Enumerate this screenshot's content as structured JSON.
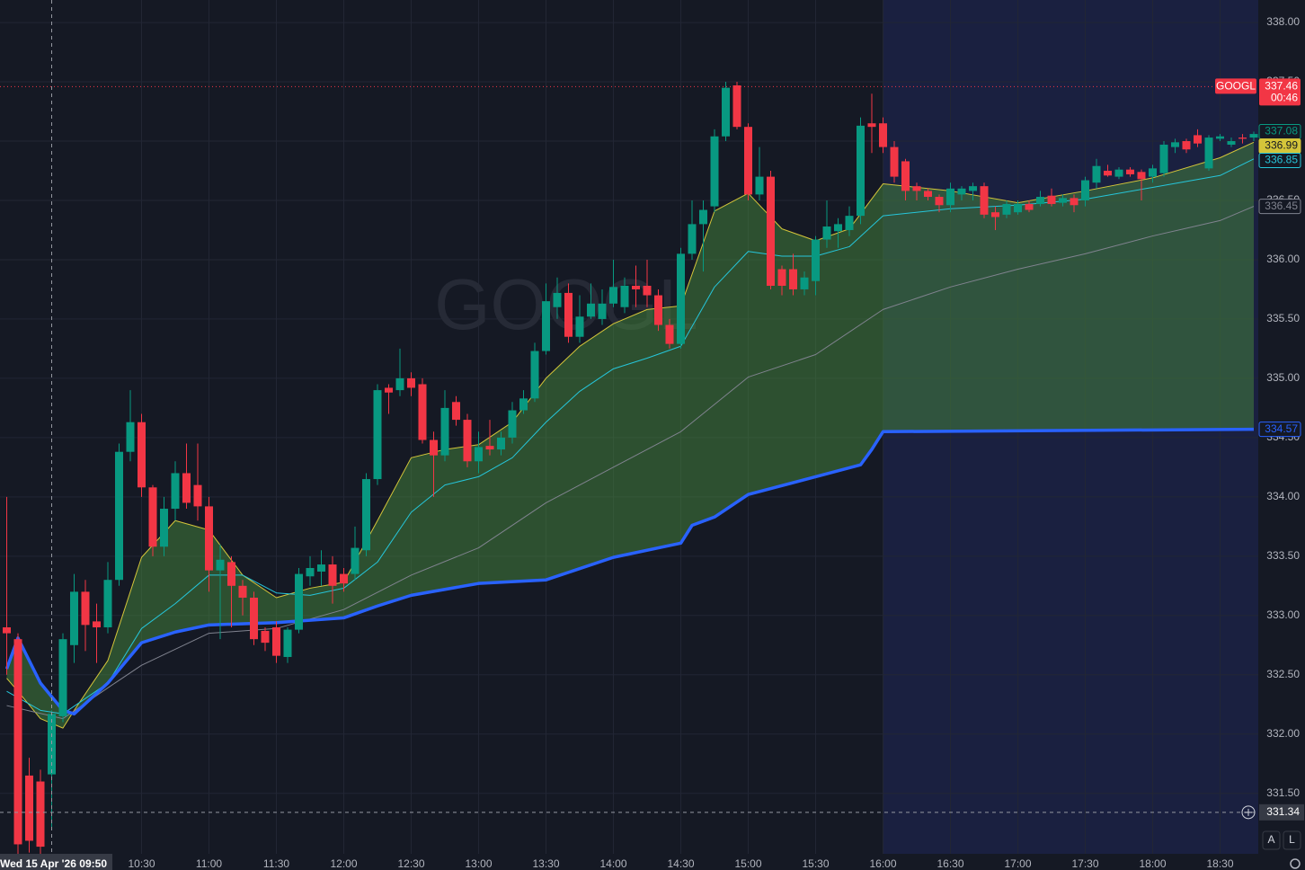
{
  "chart_data": {
    "type": "candlestick",
    "watermark": "GOOGL",
    "symbol_tag": "GOOGL",
    "countdown": "00:46",
    "up_color": "#089981",
    "down_color": "#f23645",
    "background": "#151924",
    "post_market_color": "#1a2040",
    "post_market_from": "16:00",
    "grid": true,
    "xlim": [
      "09:27",
      "18:47"
    ],
    "ylim": [
      330.99,
      338.19
    ],
    "xticks": [
      "10:30",
      "11:00",
      "11:30",
      "12:00",
      "12:30",
      "13:00",
      "13:30",
      "14:00",
      "14:30",
      "15:00",
      "15:30",
      "16:00",
      "16:30",
      "17:00",
      "17:30",
      "18:00",
      "18:30"
    ],
    "yticks": [
      {
        "value": 338,
        "label": "338.00"
      },
      {
        "value": 337.5,
        "label": "337.50"
      },
      {
        "value": 337,
        "label": "337.00"
      },
      {
        "value": 336.5,
        "label": "336.50"
      },
      {
        "value": 336,
        "label": "336.00"
      },
      {
        "value": 335.5,
        "label": "335.50"
      },
      {
        "value": 335,
        "label": "335.00"
      },
      {
        "value": 334.5,
        "label": "334.50"
      },
      {
        "value": 334,
        "label": "334.00"
      },
      {
        "value": 333.5,
        "label": "333.50"
      },
      {
        "value": 333,
        "label": "333.00"
      },
      {
        "value": 332.5,
        "label": "332.50"
      },
      {
        "value": 332,
        "label": "332.00"
      },
      {
        "value": 331.5,
        "label": "331.50"
      }
    ],
    "x": [
      "09:30",
      "09:35",
      "09:40",
      "09:45",
      "09:50",
      "09:55",
      "10:00",
      "10:05",
      "10:10",
      "10:15",
      "10:20",
      "10:25",
      "10:30",
      "10:35",
      "10:40",
      "10:45",
      "10:50",
      "10:55",
      "11:00",
      "11:05",
      "11:10",
      "11:15",
      "11:20",
      "11:25",
      "11:30",
      "11:35",
      "11:40",
      "11:45",
      "11:50",
      "11:55",
      "12:00",
      "12:05",
      "12:10",
      "12:15",
      "12:20",
      "12:25",
      "12:30",
      "12:35",
      "12:40",
      "12:45",
      "12:50",
      "12:55",
      "13:00",
      "13:05",
      "13:10",
      "13:15",
      "13:20",
      "13:25",
      "13:30",
      "13:35",
      "13:40",
      "13:45",
      "13:50",
      "13:55",
      "14:00",
      "14:05",
      "14:10",
      "14:15",
      "14:20",
      "14:25",
      "14:30",
      "14:35",
      "14:40",
      "14:45",
      "14:50",
      "14:55",
      "15:00",
      "15:05",
      "15:10",
      "15:15",
      "15:20",
      "15:25",
      "15:30",
      "15:35",
      "15:40",
      "15:45",
      "15:50",
      "15:55",
      "16:00",
      "16:05",
      "16:10",
      "16:15",
      "16:20",
      "16:25",
      "16:30",
      "16:35",
      "16:40",
      "16:45",
      "16:50",
      "16:55",
      "17:00",
      "17:05",
      "17:10",
      "17:15",
      "17:20",
      "17:25",
      "17:30",
      "17:35",
      "17:40",
      "17:45",
      "17:50",
      "17:55",
      "18:00",
      "18:05",
      "18:10",
      "18:15",
      "18:20",
      "18:25",
      "18:30",
      "18:35",
      "18:40",
      "18:45"
    ],
    "ohlc": [
      [
        332.9,
        334.0,
        332.5,
        332.85
      ],
      [
        332.8,
        332.85,
        330.95,
        331.07
      ],
      [
        331.65,
        331.8,
        331.0,
        331.1
      ],
      [
        331.6,
        331.7,
        330.95,
        331.05
      ],
      [
        331.66,
        332.2,
        331.2,
        332.17
      ],
      [
        332.15,
        332.85,
        332.1,
        332.8
      ],
      [
        332.75,
        333.35,
        332.6,
        333.2
      ],
      [
        333.2,
        333.3,
        332.7,
        332.92
      ],
      [
        332.95,
        333.1,
        332.6,
        332.9
      ],
      [
        332.9,
        333.45,
        332.85,
        333.3
      ],
      [
        333.3,
        334.45,
        333.25,
        334.38
      ],
      [
        334.38,
        334.9,
        334.3,
        334.63
      ],
      [
        334.63,
        334.7,
        334.0,
        334.08
      ],
      [
        334.08,
        334.1,
        333.5,
        333.58
      ],
      [
        333.58,
        334.0,
        333.5,
        333.9
      ],
      [
        333.9,
        334.3,
        333.8,
        334.2
      ],
      [
        334.2,
        334.45,
        333.9,
        333.95
      ],
      [
        334.1,
        334.45,
        333.8,
        333.92
      ],
      [
        333.92,
        334.0,
        333.2,
        333.38
      ],
      [
        333.38,
        333.6,
        332.8,
        333.47
      ],
      [
        333.45,
        333.5,
        332.9,
        333.25
      ],
      [
        333.25,
        333.3,
        333.0,
        333.15
      ],
      [
        333.15,
        333.2,
        332.75,
        332.8
      ],
      [
        332.87,
        332.9,
        332.7,
        332.77
      ],
      [
        332.9,
        332.95,
        332.6,
        332.66
      ],
      [
        332.65,
        332.9,
        332.6,
        332.88
      ],
      [
        332.88,
        333.4,
        332.85,
        333.35
      ],
      [
        333.33,
        333.5,
        333.25,
        333.4
      ],
      [
        333.37,
        333.55,
        333.25,
        333.43
      ],
      [
        333.43,
        333.5,
        333.1,
        333.25
      ],
      [
        333.35,
        333.4,
        333.2,
        333.27
      ],
      [
        333.35,
        333.75,
        333.3,
        333.57
      ],
      [
        333.55,
        334.2,
        333.5,
        334.15
      ],
      [
        334.15,
        334.95,
        334.1,
        334.9
      ],
      [
        334.92,
        334.95,
        334.7,
        334.88
      ],
      [
        334.9,
        335.25,
        334.85,
        335.0
      ],
      [
        335.0,
        335.05,
        334.85,
        334.92
      ],
      [
        334.95,
        335.0,
        334.45,
        334.48
      ],
      [
        334.48,
        334.55,
        334.0,
        334.35
      ],
      [
        334.35,
        334.9,
        334.3,
        334.75
      ],
      [
        334.8,
        334.85,
        334.6,
        334.65
      ],
      [
        334.65,
        334.7,
        334.25,
        334.3
      ],
      [
        334.3,
        334.55,
        334.2,
        334.42
      ],
      [
        334.43,
        334.65,
        334.35,
        334.4
      ],
      [
        334.4,
        334.55,
        334.35,
        334.5
      ],
      [
        334.5,
        334.8,
        334.45,
        334.73
      ],
      [
        334.73,
        334.9,
        334.7,
        334.83
      ],
      [
        334.83,
        335.3,
        334.8,
        335.23
      ],
      [
        335.23,
        335.8,
        335.2,
        335.65
      ],
      [
        335.6,
        335.85,
        335.5,
        335.72
      ],
      [
        335.72,
        335.8,
        335.3,
        335.35
      ],
      [
        335.35,
        335.7,
        335.3,
        335.52
      ],
      [
        335.52,
        335.8,
        335.5,
        335.63
      ],
      [
        335.5,
        335.75,
        335.45,
        335.63
      ],
      [
        335.63,
        336.0,
        335.6,
        335.77
      ],
      [
        335.6,
        335.85,
        335.55,
        335.78
      ],
      [
        335.78,
        335.95,
        335.6,
        335.75
      ],
      [
        335.78,
        336.0,
        335.6,
        335.7
      ],
      [
        335.7,
        335.75,
        335.4,
        335.45
      ],
      [
        335.45,
        335.5,
        335.25,
        335.29
      ],
      [
        335.29,
        336.1,
        335.25,
        336.05
      ],
      [
        336.05,
        336.5,
        336.0,
        336.3
      ],
      [
        336.3,
        336.5,
        335.9,
        336.42
      ],
      [
        336.45,
        337.1,
        336.4,
        337.04
      ],
      [
        337.04,
        337.5,
        337.0,
        337.45
      ],
      [
        337.47,
        337.5,
        337.1,
        337.12
      ],
      [
        337.12,
        337.15,
        336.5,
        336.55
      ],
      [
        336.55,
        336.95,
        336.5,
        336.7
      ],
      [
        336.7,
        336.75,
        335.75,
        335.78
      ],
      [
        335.92,
        335.95,
        335.7,
        335.78
      ],
      [
        335.92,
        336.05,
        335.7,
        335.75
      ],
      [
        335.75,
        335.9,
        335.7,
        335.85
      ],
      [
        335.82,
        336.2,
        335.7,
        336.17
      ],
      [
        336.17,
        336.5,
        336.1,
        336.28
      ],
      [
        336.24,
        336.35,
        336.1,
        336.3
      ],
      [
        336.25,
        336.45,
        336.2,
        336.37
      ],
      [
        336.37,
        337.2,
        336.3,
        337.13
      ],
      [
        337.15,
        337.4,
        336.9,
        337.12
      ],
      [
        337.15,
        337.2,
        336.9,
        336.95
      ],
      [
        336.95,
        337.0,
        336.65,
        336.7
      ],
      [
        336.83,
        336.85,
        336.5,
        336.58
      ],
      [
        336.62,
        336.65,
        336.5,
        336.58
      ],
      [
        336.58,
        336.6,
        336.5,
        336.53
      ],
      [
        336.53,
        336.55,
        336.4,
        336.46
      ],
      [
        336.46,
        336.65,
        336.4,
        336.6
      ],
      [
        336.55,
        336.62,
        336.5,
        336.6
      ],
      [
        336.58,
        336.65,
        336.5,
        336.62
      ],
      [
        336.62,
        336.65,
        336.35,
        336.38
      ],
      [
        336.4,
        336.45,
        336.25,
        336.36
      ],
      [
        336.38,
        336.5,
        336.35,
        336.47
      ],
      [
        336.4,
        336.5,
        336.38,
        336.47
      ],
      [
        336.47,
        336.5,
        336.4,
        336.42
      ],
      [
        336.47,
        336.58,
        336.45,
        336.53
      ],
      [
        336.54,
        336.6,
        336.45,
        336.47
      ],
      [
        336.48,
        336.55,
        336.45,
        336.52
      ],
      [
        336.52,
        336.55,
        336.4,
        336.46
      ],
      [
        336.5,
        336.7,
        336.45,
        336.67
      ],
      [
        336.65,
        336.85,
        336.6,
        336.79
      ],
      [
        336.75,
        336.8,
        336.7,
        336.71
      ],
      [
        336.7,
        336.78,
        336.68,
        336.76
      ],
      [
        336.76,
        336.78,
        336.7,
        336.72
      ],
      [
        336.74,
        336.76,
        336.5,
        336.68
      ],
      [
        336.7,
        336.8,
        336.65,
        336.77
      ],
      [
        336.73,
        337.0,
        336.7,
        336.97
      ],
      [
        336.95,
        337.02,
        336.9,
        336.99
      ],
      [
        337.0,
        337.02,
        336.9,
        336.93
      ],
      [
        337.05,
        337.1,
        336.95,
        336.98
      ],
      [
        336.77,
        337.05,
        336.75,
        337.03
      ],
      [
        337.02,
        337.06,
        337.0,
        337.04
      ],
      [
        336.97,
        337.03,
        336.95,
        337.0
      ],
      [
        337.03,
        337.06,
        336.98,
        337.02
      ],
      [
        337.03,
        337.08,
        337.0,
        337.06
      ]
    ],
    "lines": [
      {
        "color": "#d4c53a",
        "width": 1,
        "x": [
          "09:30",
          "09:35",
          "09:45",
          "09:55",
          "10:00",
          "10:15",
          "10:30",
          "10:45",
          "11:00",
          "11:15",
          "11:30",
          "11:45",
          "12:00",
          "12:15",
          "12:30",
          "12:45",
          "13:00",
          "13:15",
          "13:30",
          "13:45",
          "14:00",
          "14:15",
          "14:30",
          "14:45",
          "15:00",
          "15:15",
          "15:30",
          "15:45",
          "16:00",
          "16:30",
          "17:00",
          "17:30",
          "18:00",
          "18:30",
          "18:45"
        ],
        "values": [
          332.47,
          332.36,
          332.13,
          332.05,
          332.2,
          332.62,
          333.49,
          333.8,
          333.72,
          333.34,
          333.15,
          333.23,
          333.28,
          333.8,
          334.33,
          334.4,
          334.44,
          334.63,
          335.0,
          335.27,
          335.46,
          335.58,
          335.61,
          336.41,
          336.56,
          336.26,
          336.16,
          336.26,
          336.64,
          336.58,
          336.48,
          336.58,
          336.69,
          336.86,
          336.99
        ]
      },
      {
        "color": "#26c6da",
        "width": 1,
        "x": [
          "09:30",
          "09:45",
          "09:55",
          "10:15",
          "10:30",
          "10:45",
          "11:00",
          "11:15",
          "11:30",
          "11:45",
          "12:00",
          "12:15",
          "12:30",
          "12:45",
          "13:00",
          "13:15",
          "13:30",
          "13:45",
          "14:00",
          "14:15",
          "14:30",
          "14:45",
          "15:00",
          "15:15",
          "15:30",
          "15:45",
          "16:00",
          "16:30",
          "17:00",
          "17:30",
          "18:00",
          "18:30",
          "18:45"
        ],
        "values": [
          332.36,
          332.2,
          332.17,
          332.43,
          332.89,
          333.1,
          333.34,
          333.34,
          333.19,
          333.17,
          333.23,
          333.45,
          333.87,
          334.1,
          334.17,
          334.33,
          334.63,
          334.89,
          335.08,
          335.17,
          335.27,
          335.77,
          336.07,
          336.03,
          336.03,
          336.11,
          336.37,
          336.43,
          336.46,
          336.51,
          336.61,
          336.71,
          336.85
        ]
      },
      {
        "color": "#80838f",
        "width": 1,
        "x": [
          "09:30",
          "09:55",
          "10:15",
          "10:30",
          "11:00",
          "11:30",
          "12:00",
          "12:30",
          "13:00",
          "13:30",
          "14:00",
          "14:30",
          "15:00",
          "15:30",
          "16:00",
          "16:30",
          "17:00",
          "17:30",
          "18:00",
          "18:30",
          "18:45"
        ],
        "values": [
          332.24,
          332.13,
          332.39,
          332.58,
          332.85,
          332.89,
          333.05,
          333.34,
          333.57,
          333.95,
          334.25,
          334.55,
          335.01,
          335.2,
          335.58,
          335.77,
          335.92,
          336.05,
          336.2,
          336.33,
          336.45
        ]
      },
      {
        "color": "#2962ff",
        "width": 3.5,
        "x": [
          "09:30",
          "09:35",
          "09:45",
          "09:55",
          "10:00",
          "10:15",
          "10:30",
          "10:45",
          "11:00",
          "11:30",
          "12:00",
          "12:15",
          "12:30",
          "13:00",
          "13:30",
          "14:00",
          "14:30",
          "14:35",
          "14:45",
          "15:00",
          "15:30",
          "15:50",
          "15:55",
          "16:00",
          "18:45"
        ],
        "values": [
          332.55,
          332.81,
          332.43,
          332.2,
          332.17,
          332.43,
          332.77,
          332.86,
          332.92,
          332.94,
          332.98,
          333.08,
          333.17,
          333.27,
          333.3,
          333.49,
          333.61,
          333.76,
          333.83,
          334.02,
          334.17,
          334.27,
          334.4,
          334.55,
          334.57
        ]
      }
    ],
    "band_fill": "rgba(70,135,60,0.5)",
    "price_labels": [
      {
        "value": 337.08,
        "label": "337.08",
        "color": "#089981",
        "filled": false
      },
      {
        "value": 336.99,
        "label": "336.99",
        "color": "#d4c53a",
        "filled": true
      },
      {
        "value": 336.85,
        "label": "336.85",
        "color": "#26c6da",
        "filled": false
      },
      {
        "value": 336.45,
        "label": "336.45",
        "color": "#80838f",
        "filled": false
      },
      {
        "value": 334.57,
        "label": "334.57",
        "color": "#2962ff",
        "filled": false
      }
    ],
    "last_price": {
      "value": 337.46,
      "label": "337.46",
      "color": "#f23645"
    },
    "crosshair": {
      "x": "09:50",
      "date_label": "Wed 15 Apr '26",
      "y": {
        "value": 331.34,
        "label": "331.34"
      }
    },
    "buttons": [
      "A",
      "L"
    ]
  }
}
